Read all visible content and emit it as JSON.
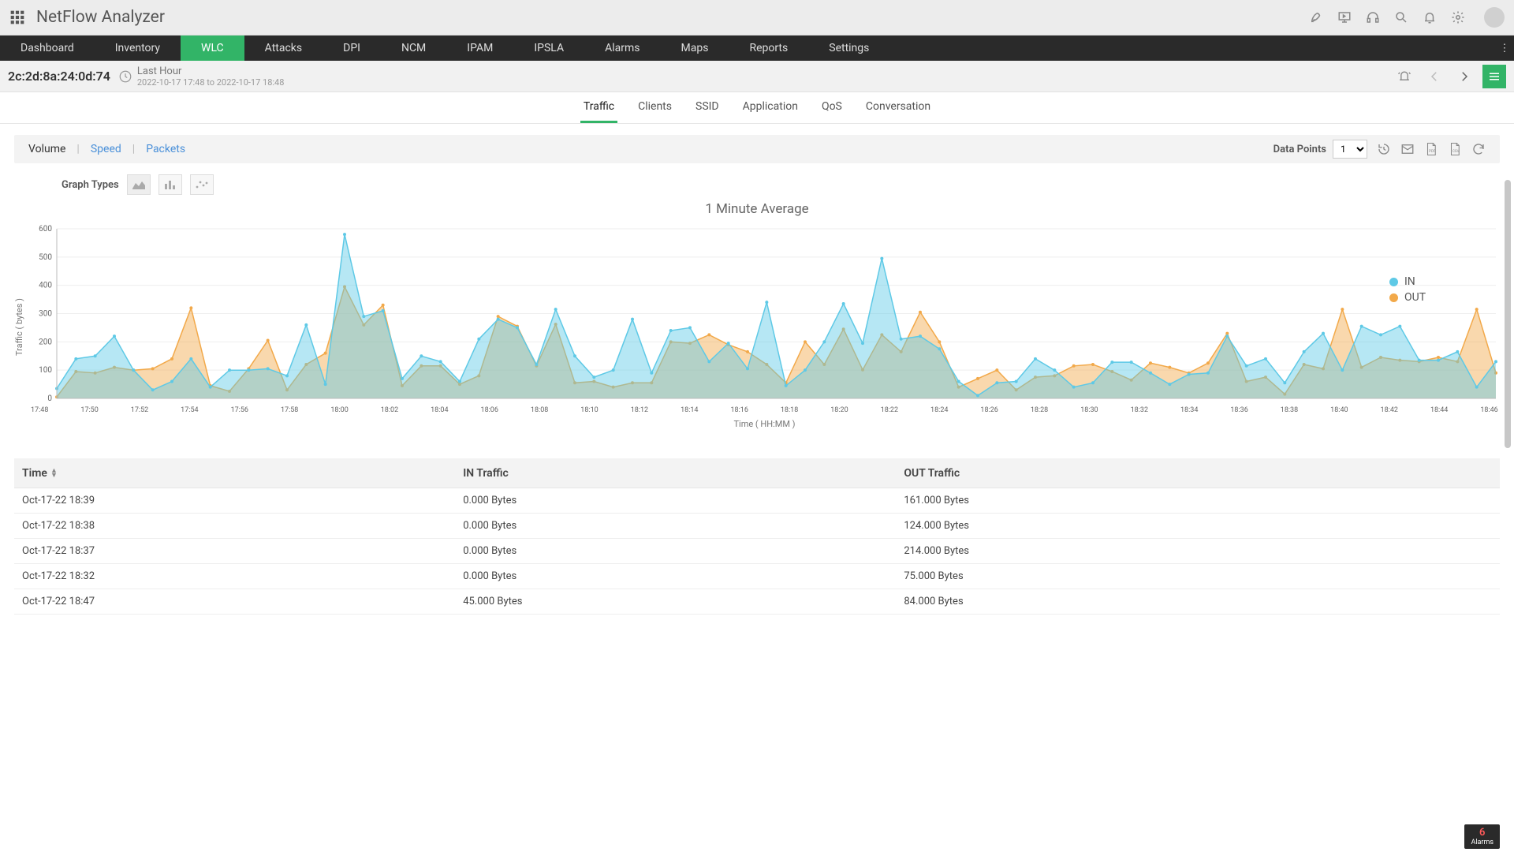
{
  "app": {
    "title": "NetFlow Analyzer"
  },
  "topIcons": [
    "rocket",
    "presentation",
    "headset",
    "search",
    "bell",
    "gear"
  ],
  "nav": {
    "items": [
      "Dashboard",
      "Inventory",
      "WLC",
      "Attacks",
      "DPI",
      "NCM",
      "IPAM",
      "IPSLA",
      "Alarms",
      "Maps",
      "Reports",
      "Settings"
    ],
    "active": "WLC"
  },
  "device": {
    "id": "2c:2d:8a:24:0d:74",
    "rangeLabel": "Last Hour",
    "rangeDetail": "2022-10-17 17:48 to 2022-10-17 18:48"
  },
  "subTabs": {
    "items": [
      "Traffic",
      "Clients",
      "SSID",
      "Application",
      "QoS",
      "Conversation"
    ],
    "active": "Traffic"
  },
  "metrics": {
    "items": [
      "Volume",
      "Speed",
      "Packets"
    ],
    "active": "Volume"
  },
  "dataPoints": {
    "label": "Data Points",
    "value": "1"
  },
  "graphTypes": {
    "label": "Graph Types"
  },
  "chart": {
    "title": "1 Minute Average",
    "yLabel": "Traffic ( bytes )",
    "xLabel": "Time ( HH:MM )",
    "yMin": 0,
    "yMax": 600,
    "yStep": 100,
    "bg": "#ffffff",
    "gridColor": "#eeeeee",
    "series": [
      {
        "name": "IN",
        "color": "#5ec9e6",
        "fill": "rgba(94,201,230,0.45)"
      },
      {
        "name": "OUT",
        "color": "#f2a94a",
        "fill": "rgba(242,169,74,0.45)"
      }
    ],
    "xTicks": [
      "17:48",
      "17:50",
      "17:52",
      "17:54",
      "17:56",
      "17:58",
      "18:00",
      "18:02",
      "18:04",
      "18:06",
      "18:08",
      "18:10",
      "18:12",
      "18:14",
      "18:16",
      "18:18",
      "18:20",
      "18:22",
      "18:24",
      "18:26",
      "18:28",
      "18:30",
      "18:32",
      "18:34",
      "18:36",
      "18:38",
      "18:40",
      "18:42",
      "18:44",
      "18:46"
    ],
    "in": [
      35,
      140,
      150,
      220,
      100,
      30,
      60,
      140,
      40,
      100,
      100,
      105,
      80,
      260,
      50,
      580,
      290,
      310,
      70,
      150,
      130,
      60,
      210,
      280,
      250,
      120,
      315,
      150,
      75,
      100,
      280,
      90,
      240,
      250,
      130,
      195,
      105,
      340,
      45,
      100,
      200,
      335,
      195,
      495,
      210,
      220,
      175,
      60,
      10,
      55,
      60,
      140,
      100,
      40,
      55,
      128,
      128,
      90,
      50,
      85,
      90,
      220,
      115,
      140,
      55,
      165,
      230,
      100,
      255,
      225,
      255,
      135,
      135,
      165,
      40,
      130
    ],
    "out": [
      5,
      95,
      90,
      110,
      100,
      105,
      140,
      320,
      45,
      25,
      105,
      205,
      30,
      120,
      160,
      395,
      260,
      330,
      45,
      115,
      115,
      50,
      80,
      290,
      255,
      115,
      262,
      55,
      60,
      40,
      55,
      55,
      200,
      195,
      225,
      190,
      165,
      120,
      55,
      200,
      120,
      245,
      101,
      225,
      165,
      305,
      200,
      40,
      70,
      100,
      30,
      75,
      80,
      115,
      120,
      95,
      65,
      125,
      110,
      90,
      125,
      230,
      60,
      75,
      15,
      120,
      105,
      315,
      110,
      145,
      135,
      130,
      145,
      130,
      315,
      90
    ]
  },
  "table": {
    "columns": [
      "Time",
      "IN Traffic",
      "OUT Traffic"
    ],
    "rows": [
      [
        "Oct-17-22 18:39",
        "0.000 Bytes",
        "161.000 Bytes"
      ],
      [
        "Oct-17-22 18:38",
        "0.000 Bytes",
        "124.000 Bytes"
      ],
      [
        "Oct-17-22 18:37",
        "0.000 Bytes",
        "214.000 Bytes"
      ],
      [
        "Oct-17-22 18:32",
        "0.000 Bytes",
        "75.000 Bytes"
      ],
      [
        "Oct-17-22 18:47",
        "45.000 Bytes",
        "84.000 Bytes"
      ]
    ]
  },
  "alarms": {
    "count": "6",
    "label": "Alarms"
  }
}
